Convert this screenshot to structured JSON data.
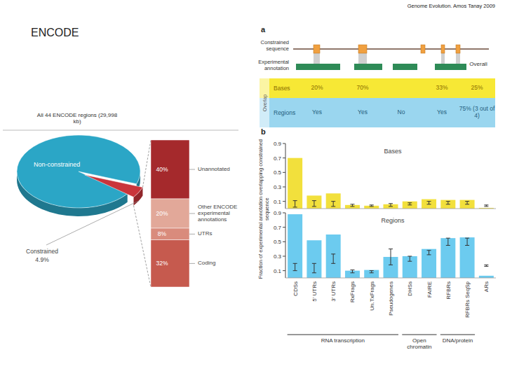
{
  "header": {
    "source": "Genome Evolution. Amos Tanay 2009",
    "title": "ENCODE"
  },
  "panel_a": {
    "label": "a",
    "tracks": [
      "Constrained sequence",
      "Experimental annotation"
    ],
    "overlap_label": "Overlap",
    "overall_label": "Overall",
    "rows": [
      {
        "label": "Bases",
        "cells": [
          "20%",
          "70%",
          null,
          "33%",
          "25%"
        ]
      },
      {
        "label": "Regions",
        "cells": [
          "Yes",
          "Yes",
          "No",
          "Yes",
          "75% (3 out of 4)"
        ]
      }
    ]
  },
  "panel_b": {
    "label": "b",
    "ylabel": "Fraction of experimental annotation overlapping constrained sequence",
    "groups": [
      {
        "label": "RNA transcription",
        "from": "CDSs",
        "to": "Pseudogenes"
      },
      {
        "label": "Open chromatin",
        "from": "DHSs",
        "to": "FAIRE"
      },
      {
        "label": "DNA/protein",
        "from": "RFBRs",
        "to": "RFBRs SeqSp"
      }
    ]
  },
  "chart_data": [
    {
      "type": "pie",
      "title": "All 44 ENCODE regions (29,998 kb)",
      "categories": [
        "Non-constrained",
        "Constrained"
      ],
      "values": [
        95.1,
        4.9
      ],
      "value_labels": [
        null,
        "4.9%"
      ],
      "colors": [
        "#2ba6c6",
        "#c9353b"
      ]
    },
    {
      "type": "bar",
      "stacked": true,
      "data_labels": true,
      "categories": [
        "Unannotated",
        "Other ENCODE experimental annotations",
        "UTRs",
        "Coding"
      ],
      "values": [
        40,
        20,
        8,
        32
      ],
      "value_labels": [
        "40%",
        "20%",
        "8%",
        "32%"
      ],
      "colors": [
        "#a5292c",
        "#e2a899",
        "#d98b7c",
        "#c65a4e"
      ]
    },
    {
      "type": "bar",
      "title": "Bases",
      "values": [
        0.7,
        0.18,
        0.21,
        0.05,
        0.04,
        0.06,
        0.1,
        0.13,
        0.12,
        0.12,
        0.01
      ],
      "range_low": [
        0.02,
        0.03,
        0.03,
        0.03,
        0.03,
        0.03,
        0.05,
        0.06,
        0.06,
        0.06,
        0.03
      ],
      "range_high": [
        0.11,
        0.11,
        0.1,
        0.06,
        0.05,
        0.07,
        0.08,
        0.1,
        0.1,
        0.1,
        0.05
      ],
      "color": "#f2e03c",
      "ylim": [
        0,
        0.9
      ],
      "yticks": [
        0.1,
        0.3,
        0.5,
        0.7,
        0.9
      ],
      "grid": false
    },
    {
      "type": "bar",
      "title": "Regions",
      "categories": [
        "CDSs",
        "5' UTRs",
        "3' UTRs",
        "RxFrags",
        "Un.TxFrags",
        "Pseudogenes",
        "DHSs",
        "FAIRE",
        "RFBRs",
        "RFBRs SeqSp",
        "ARs"
      ],
      "values": [
        0.88,
        0.52,
        0.6,
        0.1,
        0.11,
        0.29,
        0.3,
        0.4,
        0.55,
        0.56,
        0.03
      ],
      "range_low": [
        0.1,
        0.07,
        0.2,
        0.07,
        0.07,
        0.18,
        0.23,
        0.32,
        0.45,
        0.45,
        0.16
      ],
      "range_high": [
        0.2,
        0.2,
        0.33,
        0.11,
        0.1,
        0.4,
        0.3,
        0.38,
        0.55,
        0.55,
        0.18
      ],
      "color": "#6ccbef",
      "ylim": [
        0,
        0.9
      ],
      "yticks": [
        0.1,
        0.3,
        0.5,
        0.7,
        0.9
      ],
      "grid": false
    }
  ]
}
